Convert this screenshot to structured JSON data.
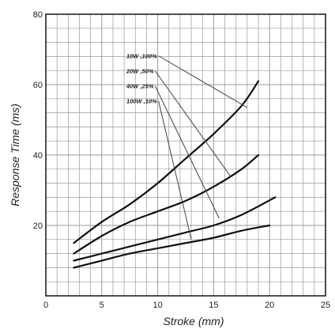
{
  "chart_data": {
    "type": "line",
    "xlabel": "Stroke (mm)",
    "ylabel": "Response Time (ms)",
    "xlim": [
      0,
      25
    ],
    "ylim": [
      0,
      80
    ],
    "x_ticks": [
      0,
      5,
      10,
      15,
      20,
      25
    ],
    "y_ticks": [
      20,
      40,
      60,
      80
    ],
    "grid": true,
    "legend": "callout labels with leader lines, upper middle",
    "series": [
      {
        "name": "10W ,100%",
        "x": [
          2.5,
          5,
          7.5,
          10,
          12.5,
          15,
          17.5,
          19
        ],
        "y": [
          15,
          21,
          26,
          32,
          39,
          46,
          54,
          61
        ]
      },
      {
        "name": "20W ,50%",
        "x": [
          2.5,
          5,
          7.5,
          10,
          12.5,
          15,
          17.5,
          19
        ],
        "y": [
          12,
          17,
          21,
          24,
          27,
          31,
          36,
          40
        ]
      },
      {
        "name": "40W ,25%",
        "x": [
          2.5,
          5,
          7.5,
          10,
          12.5,
          15,
          17.5,
          20.5
        ],
        "y": [
          10,
          12,
          14,
          16,
          18,
          20,
          23,
          28
        ]
      },
      {
        "name": "100W ,10%",
        "x": [
          2.5,
          5,
          7.5,
          10,
          12.5,
          15,
          17.5,
          20
        ],
        "y": [
          8,
          10,
          12,
          13.5,
          15,
          16.5,
          18.5,
          20
        ]
      }
    ],
    "callout_targets": [
      {
        "x": 18,
        "y": 53.5
      },
      {
        "x": 16.5,
        "y": 34
      },
      {
        "x": 15.5,
        "y": 22
      },
      {
        "x": 13,
        "y": 16
      }
    ]
  },
  "colors": {
    "grid": "#9a9a9a",
    "axis": "#222222",
    "series": "#111111",
    "leader": "#444444"
  }
}
